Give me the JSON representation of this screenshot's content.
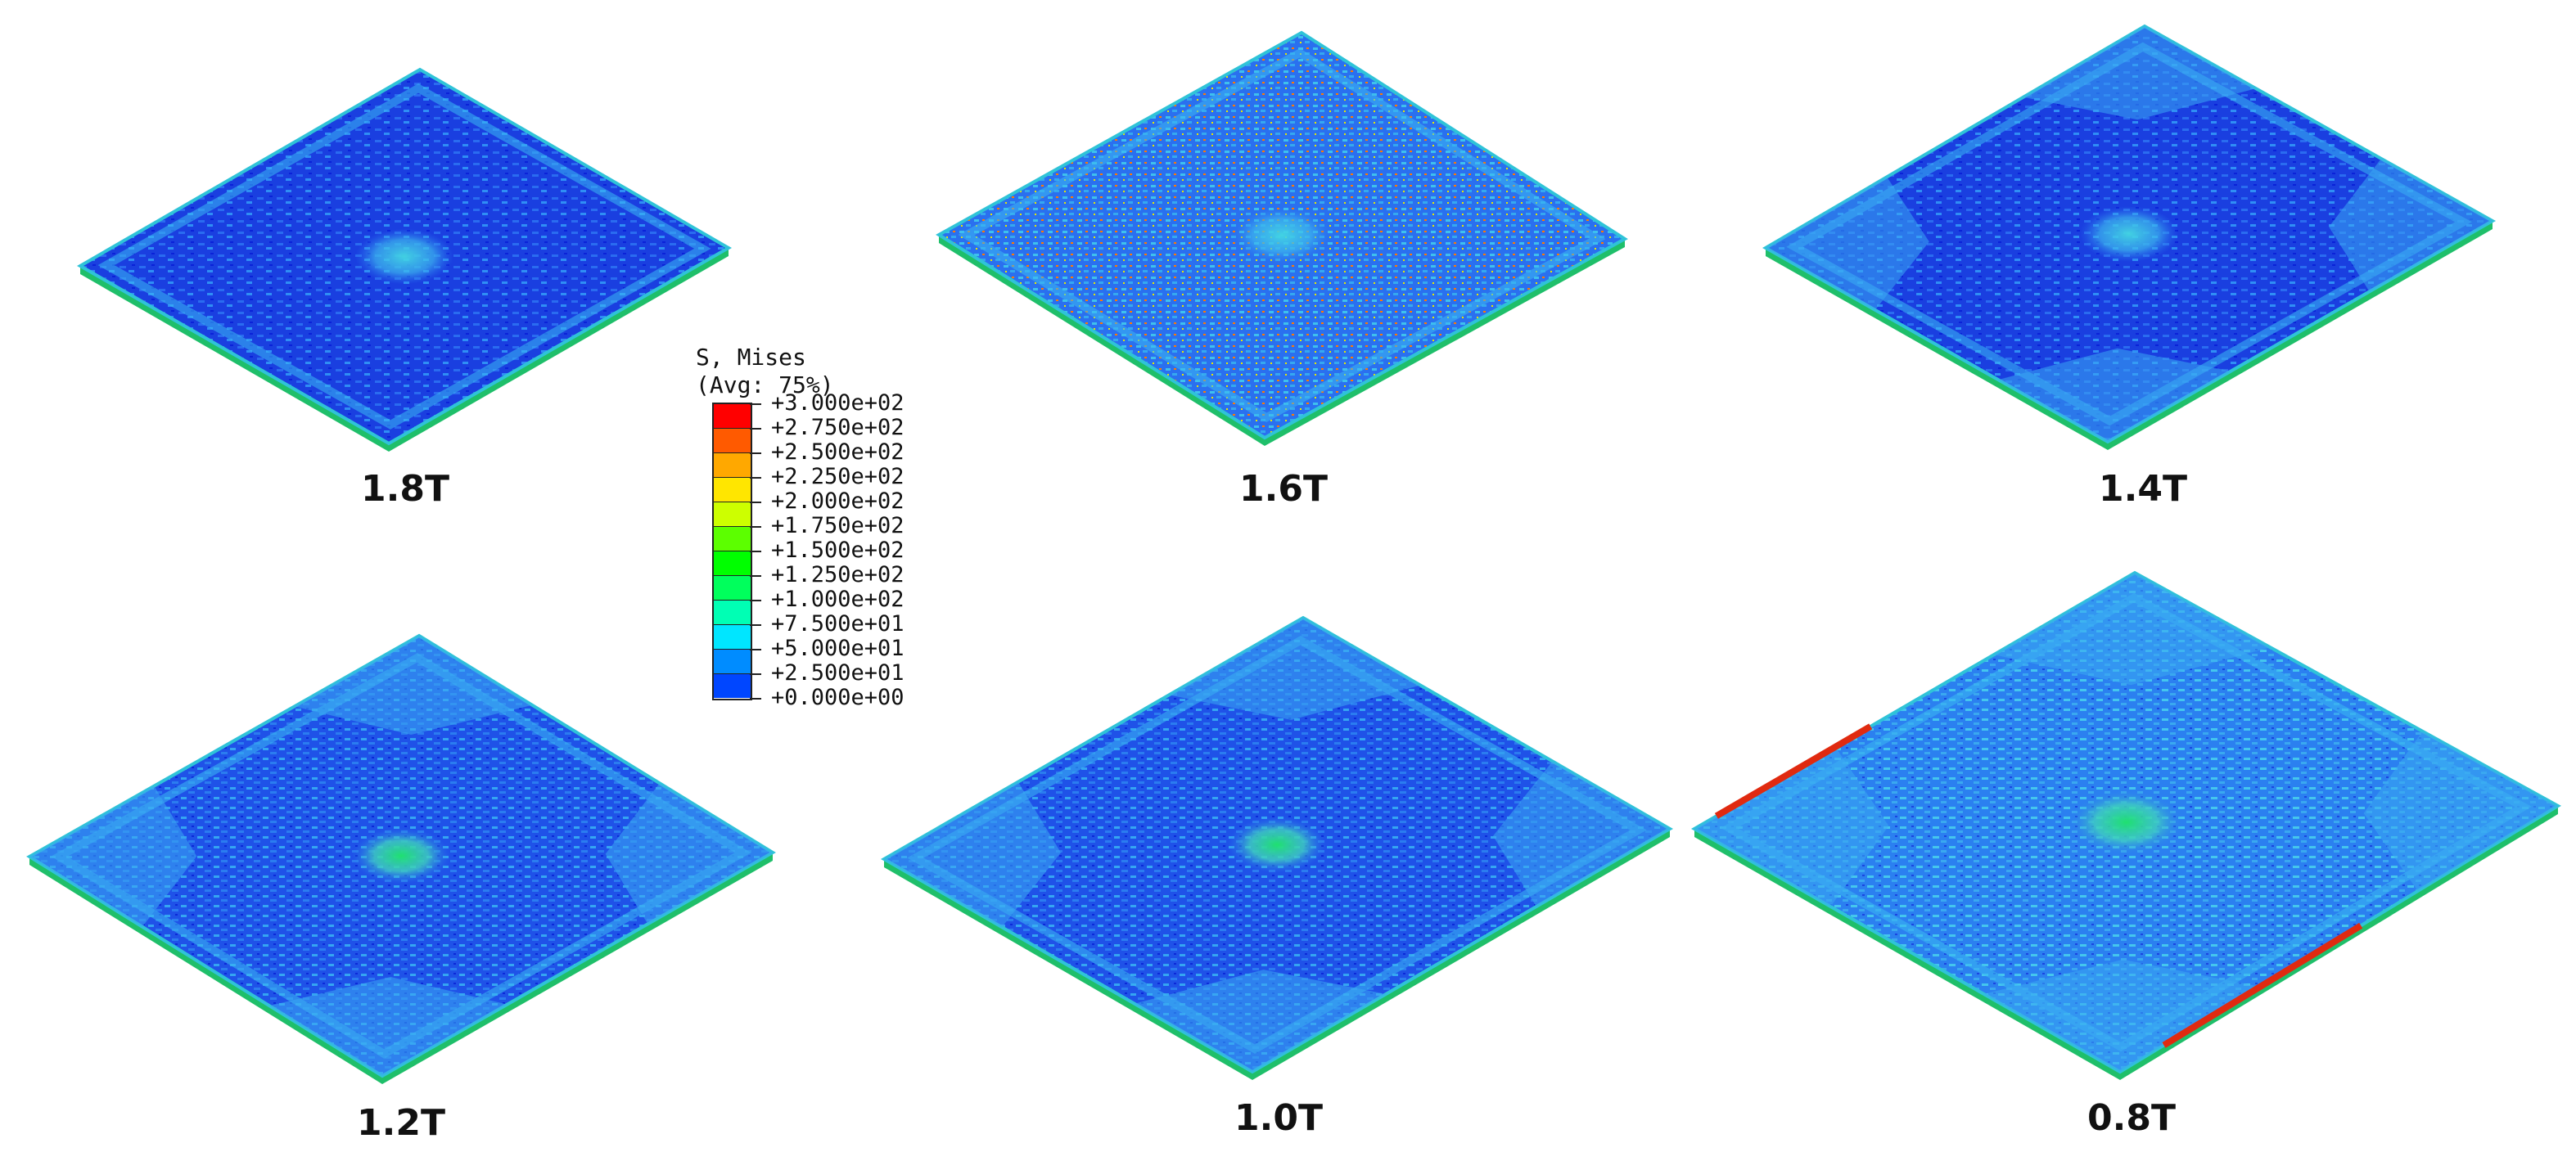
{
  "legend": {
    "title_line1": "S, Mises",
    "title_line2": "(Avg: 75%)",
    "entries": [
      {
        "label": "+3.000e+02",
        "color": "#ff0000"
      },
      {
        "label": "+2.750e+02",
        "color": "#ff5a00"
      },
      {
        "label": "+2.500e+02",
        "color": "#ffa800"
      },
      {
        "label": "+2.250e+02",
        "color": "#ffe600"
      },
      {
        "label": "+2.000e+02",
        "color": "#cdff00"
      },
      {
        "label": "+1.750e+02",
        "color": "#5cff00"
      },
      {
        "label": "+1.500e+02",
        "color": "#00ff00"
      },
      {
        "label": "+1.250e+02",
        "color": "#00ff5c"
      },
      {
        "label": "+1.000e+02",
        "color": "#00ffb4"
      },
      {
        "label": "+7.500e+01",
        "color": "#00e6ff"
      },
      {
        "label": "+5.000e+01",
        "color": "#008cff"
      },
      {
        "label": "+2.500e+01",
        "color": "#0046ff"
      },
      {
        "label": "+0.000e+00",
        "color": "#0000ff"
      }
    ]
  },
  "panels": [
    {
      "label": "1.8T",
      "stress_pattern": "low-uniform"
    },
    {
      "label": "1.6T",
      "stress_pattern": "scattered-hotspots"
    },
    {
      "label": "1.4T",
      "stress_pattern": "corner-fans"
    },
    {
      "label": "1.2T",
      "stress_pattern": "corner-fans"
    },
    {
      "label": "1.0T",
      "stress_pattern": "corner-fans"
    },
    {
      "label": "0.8T",
      "stress_pattern": "edge-high"
    }
  ]
}
